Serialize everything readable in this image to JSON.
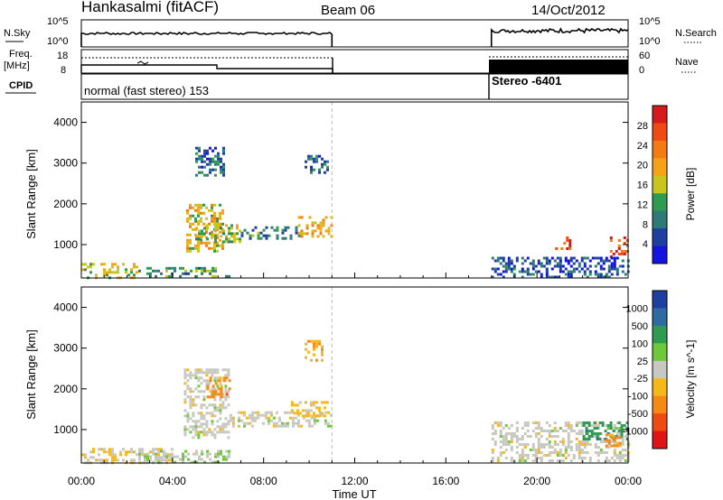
{
  "header": {
    "title": "Hankasalmi (fitACF)",
    "beam": "Beam 06",
    "date": "14/Oct/2012"
  },
  "left_labels": {
    "nsky": "N.Sky",
    "freq_line1": "Freq.",
    "freq_line2": "[MHz]",
    "cpid": "CPID"
  },
  "right_labels": {
    "nsearch": "N.Search",
    "nave": "Nave"
  },
  "tick_text": {
    "noise_top": "10^5",
    "noise_bottom": "10^0",
    "freq_top": "18",
    "freq_bottom": "8",
    "nave_top": "60",
    "nave_bottom": "0"
  },
  "cpid_labels": {
    "first": "normal (fast stereo) 153",
    "second": "Stereo -6401"
  },
  "chart_data": [
    {
      "type": "heatmap",
      "title": "",
      "xlabel": "",
      "ylabel": "Slant Range [km]",
      "colorbar_label": "Power [dB]",
      "colorbar_ticks": [
        "28",
        "24",
        "20",
        "16",
        "12",
        "8",
        "4"
      ],
      "colorbar_colors": [
        "#d41a1a",
        "#ef4a14",
        "#f47a14",
        "#f6a219",
        "#c8c61e",
        "#2f9b52",
        "#2f7a78",
        "#1e3fa0",
        "#1414e0"
      ],
      "ylim": [
        180,
        4500
      ],
      "yticks": [
        "1000",
        "2000",
        "3000",
        "4000"
      ],
      "x_range_hours": [
        0,
        24
      ],
      "data_gap_hours": [
        11.0,
        18.0
      ],
      "regions": [
        {
          "t": [
            0.0,
            2.5
          ],
          "r": [
            200,
            550
          ],
          "level": 16
        },
        {
          "t": [
            2.5,
            6.5
          ],
          "r": [
            200,
            450
          ],
          "level": 12
        },
        {
          "t": [
            4.6,
            6.2
          ],
          "r": [
            850,
            2000
          ],
          "level": 18
        },
        {
          "t": [
            5.0,
            7.0
          ],
          "r": [
            1100,
            1500
          ],
          "level": 14
        },
        {
          "t": [
            7.0,
            9.5
          ],
          "r": [
            1150,
            1450
          ],
          "level": 10
        },
        {
          "t": [
            9.5,
            11.0
          ],
          "r": [
            1200,
            1700
          ],
          "level": 20
        },
        {
          "t": [
            5.0,
            6.2
          ],
          "r": [
            2700,
            3400
          ],
          "level": 8
        },
        {
          "t": [
            9.8,
            10.8
          ],
          "r": [
            2800,
            3200
          ],
          "level": 8
        },
        {
          "t": [
            20.8,
            21.4
          ],
          "r": [
            900,
            1200
          ],
          "level": 26
        },
        {
          "t": [
            23.2,
            24.0
          ],
          "r": [
            650,
            1200
          ],
          "level": 28
        },
        {
          "t": [
            18.0,
            24.0
          ],
          "r": [
            200,
            700
          ],
          "level": 6
        }
      ]
    },
    {
      "type": "heatmap",
      "title": "",
      "xlabel": "Time UT",
      "ylabel": "Slant Range [km]",
      "colorbar_label": "Velocity [m s^-1]",
      "colorbar_ticks": [
        "1000",
        "500",
        "100",
        "25",
        "-25",
        "-100",
        "-500",
        "-1000"
      ],
      "colorbar_colors": [
        "#1e3fa0",
        "#2f6aa0",
        "#2f9b52",
        "#6ec83c",
        "#c8c8c0",
        "#f6b819",
        "#f48a14",
        "#ef4a14",
        "#e01414"
      ],
      "ylim": [
        180,
        4500
      ],
      "yticks": [
        "1000",
        "2000",
        "3000",
        "4000"
      ],
      "xticks": [
        "00:00",
        "04:00",
        "08:00",
        "12:00",
        "16:00",
        "20:00",
        "00:00"
      ],
      "x_range_hours": [
        0,
        24
      ],
      "data_gap_hours": [
        11.0,
        18.0
      ],
      "regions": [
        {
          "t": [
            0.0,
            4.0
          ],
          "r": [
            200,
            550
          ],
          "v": -100
        },
        {
          "t": [
            2.5,
            6.5
          ],
          "r": [
            200,
            500
          ],
          "v": 100
        },
        {
          "t": [
            4.5,
            6.5
          ],
          "r": [
            800,
            2500
          ],
          "v": 0
        },
        {
          "t": [
            5.5,
            6.5
          ],
          "r": [
            1800,
            2300
          ],
          "v": -500
        },
        {
          "t": [
            6.5,
            11.0
          ],
          "r": [
            1100,
            1450
          ],
          "v": 0
        },
        {
          "t": [
            9.2,
            10.8
          ],
          "r": [
            1350,
            1700
          ],
          "v": -150
        },
        {
          "t": [
            9.8,
            10.6
          ],
          "r": [
            2700,
            3200
          ],
          "v": -300
        },
        {
          "t": [
            18.0,
            24.0
          ],
          "r": [
            250,
            1200
          ],
          "v": 0
        },
        {
          "t": [
            22.0,
            24.0
          ],
          "r": [
            800,
            1200
          ],
          "v": 500
        },
        {
          "t": [
            23.0,
            23.6
          ],
          "r": [
            600,
            900
          ],
          "v": -400
        }
      ]
    }
  ],
  "colors": {
    "axis": "#000000",
    "gap_line": "#bbbbbb"
  }
}
